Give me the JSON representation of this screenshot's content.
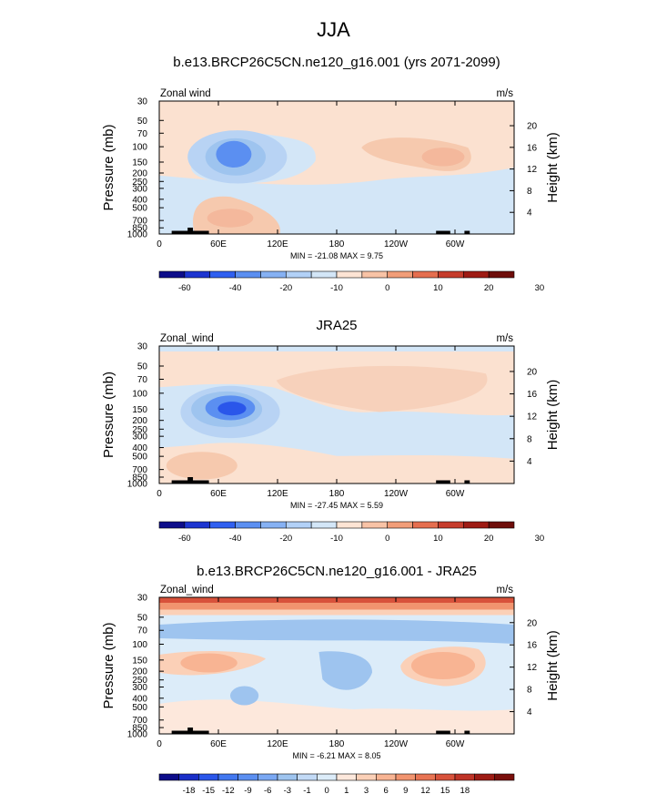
{
  "main_title": "JJA",
  "colors": {
    "positive_light": "#fbe1d0",
    "positive_mid": "#f4b89c",
    "positive_strong": "#e77f62",
    "negative_light": "#d3e6f7",
    "negative_mid": "#9ec4ef",
    "negative_strong": "#5b8ff1",
    "negative_deep": "#2a56ea",
    "topography": "#000000"
  },
  "chart_data": [
    {
      "type": "heatmap",
      "title": "b.e13.BRCP26C5CN.ne120_g16.001 (yrs 2071-2099)",
      "left_label": "Zonal wind",
      "right_label": "m/s",
      "ylabel": "Pressure (mb)",
      "ylabel_right": "Height (km)",
      "x_ticks": [
        "0",
        "60E",
        "120E",
        "180",
        "120W",
        "60W"
      ],
      "y_ticks": [
        "30",
        "50",
        "70",
        "100",
        "150",
        "200",
        "250",
        "300",
        "400",
        "500",
        "700",
        "850",
        "1000"
      ],
      "height_ticks": [
        "20",
        "16",
        "12",
        "8",
        "4"
      ],
      "stats": "MIN = -21.08   MAX =  9.75",
      "min": -21.08,
      "max": 9.75,
      "colorbar_labels": [
        "-60",
        "-40",
        "-20",
        "-10",
        "0",
        "10",
        "20",
        "30"
      ]
    },
    {
      "type": "heatmap",
      "title": "JRA25",
      "left_label": "Zonal_wind",
      "right_label": "m/s",
      "ylabel": "Pressure (mb)",
      "ylabel_right": "Height (km)",
      "x_ticks": [
        "0",
        "60E",
        "120E",
        "180",
        "120W",
        "60W"
      ],
      "y_ticks": [
        "30",
        "50",
        "70",
        "100",
        "150",
        "200",
        "250",
        "300",
        "400",
        "500",
        "700",
        "850",
        "1000"
      ],
      "height_ticks": [
        "20",
        "16",
        "12",
        "8",
        "4"
      ],
      "stats": "MIN = -27.45   MAX =  5.59",
      "min": -27.45,
      "max": 5.59,
      "colorbar_labels": [
        "-60",
        "-40",
        "-20",
        "-10",
        "0",
        "10",
        "20",
        "30"
      ]
    },
    {
      "type": "heatmap",
      "title": "b.e13.BRCP26C5CN.ne120_g16.001 - JRA25",
      "left_label": "Zonal_wind",
      "right_label": "m/s",
      "ylabel": "Pressure (mb)",
      "ylabel_right": "Height (km)",
      "x_ticks": [
        "0",
        "60E",
        "120E",
        "180",
        "120W",
        "60W"
      ],
      "y_ticks": [
        "30",
        "50",
        "70",
        "100",
        "150",
        "200",
        "250",
        "300",
        "400",
        "500",
        "700",
        "850",
        "1000"
      ],
      "height_ticks": [
        "20",
        "16",
        "12",
        "8",
        "4"
      ],
      "stats": "MIN = -6.21   MAX =  8.05",
      "min": -6.21,
      "max": 8.05,
      "colorbar_labels": [
        "-18",
        "-15",
        "-12",
        "-9",
        "-6",
        "-3",
        "-1",
        "0",
        "1",
        "3",
        "6",
        "9",
        "12",
        "15",
        "18"
      ]
    }
  ]
}
